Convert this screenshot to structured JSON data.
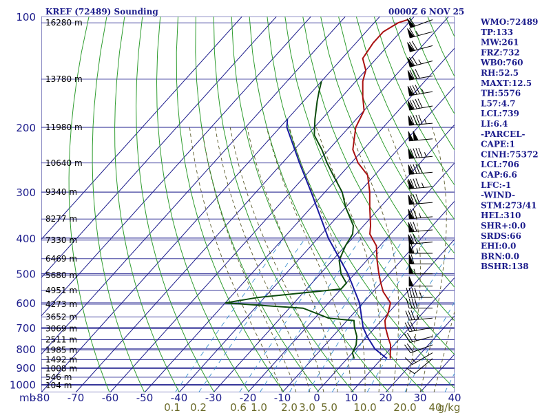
{
  "header": {
    "title": "KREF (72489) Sounding",
    "datetime": "0000Z  6 NOV 25"
  },
  "colors": {
    "grid": "#1c1c8c",
    "dry_adiabat": "#2e9c2e",
    "moist_adiabat": "#5a5a2a",
    "mixing_ratio": "#3a8fcf",
    "temperature": "#aa1111",
    "dewpoint": "#0c4c0c",
    "parcel": "#1a1aa0",
    "wind_barb": "#000000"
  },
  "indices": [
    "WMO:72489",
    "TP:133",
    "MW:261",
    "FRZ:732",
    "WB0:760",
    "RH:52.5",
    "MAXT:12.5",
    "TH:5576",
    "L57:4.7",
    "LCL:739",
    "LI:6.4",
    "-PARCEL-",
    "CAPE:1",
    "CINH:75372",
    "LCL:706",
    "CAP:6.6",
    "LFC:-1",
    "-WIND-",
    "STM:273/41",
    "HEL:310",
    "SHR+:0.0",
    "SRDS:66",
    "EHI:0.0",
    "BRN:0.0",
    "BSHR:138"
  ],
  "mr_labels": [
    "0.1",
    "0.2",
    "0.6",
    "1.0",
    "2.0",
    "3.0",
    "5.0",
    "10.0",
    "20.0",
    "40",
    "g/kg"
  ],
  "chart_data": {
    "type": "line",
    "title": "KREF (72489) Sounding",
    "subtitle": "0000Z  6 NOV 25",
    "xlabel": "",
    "ylabel": "mb",
    "yscale": "log",
    "xlim": [
      -80,
      40
    ],
    "ylim": [
      1050,
      100
    ],
    "pressure_ticks": [
      100,
      200,
      300,
      400,
      500,
      600,
      700,
      800,
      900,
      1000
    ],
    "temperature_ticks": [
      -80,
      -70,
      -60,
      -50,
      -40,
      -30,
      -20,
      -10,
      0,
      10,
      20,
      30,
      40
    ],
    "height_labels": [
      {
        "p": 104,
        "label": "16280 m"
      },
      {
        "p": 148,
        "label": "13780 m"
      },
      {
        "p": 200,
        "label": "11980 m"
      },
      {
        "p": 250,
        "label": "10640 m"
      },
      {
        "p": 300,
        "label": "9340 m"
      },
      {
        "p": 355,
        "label": "8277 m"
      },
      {
        "p": 405,
        "label": "7330 m"
      },
      {
        "p": 455,
        "label": "6469 m"
      },
      {
        "p": 505,
        "label": "5680 m"
      },
      {
        "p": 555,
        "label": "4951 m"
      },
      {
        "p": 605,
        "label": "4273 m"
      },
      {
        "p": 655,
        "label": "3652 m"
      },
      {
        "p": 705,
        "label": "3069 m"
      },
      {
        "p": 755,
        "label": "2511 m"
      },
      {
        "p": 805,
        "label": "1985 m"
      },
      {
        "p": 855,
        "label": "1492 m"
      },
      {
        "p": 905,
        "label": "1008 m"
      },
      {
        "p": 955,
        "label": "546 m"
      },
      {
        "p": 1005,
        "label": "104 m"
      }
    ],
    "series": [
      {
        "role": "temperature",
        "points": [
          [
            850,
            12.5
          ],
          [
            820,
            11
          ],
          [
            780,
            9
          ],
          [
            740,
            6
          ],
          [
            700,
            3
          ],
          [
            670,
            1
          ],
          [
            640,
            0
          ],
          [
            600,
            -2
          ],
          [
            560,
            -7
          ],
          [
            530,
            -10
          ],
          [
            500,
            -13
          ],
          [
            460,
            -17
          ],
          [
            420,
            -21
          ],
          [
            390,
            -26
          ],
          [
            370,
            -28
          ],
          [
            330,
            -33
          ],
          [
            300,
            -37
          ],
          [
            270,
            -42
          ],
          [
            250,
            -48
          ],
          [
            230,
            -53
          ],
          [
            200,
            -58
          ],
          [
            180,
            -60
          ],
          [
            165,
            -64
          ],
          [
            150,
            -68
          ],
          [
            140,
            -70
          ],
          [
            130,
            -74
          ],
          [
            118,
            -75
          ],
          [
            110,
            -75
          ],
          [
            104,
            -73
          ],
          [
            102,
            -71
          ]
        ]
      },
      {
        "role": "dewpoint",
        "points": [
          [
            850,
            2
          ],
          [
            820,
            0
          ],
          [
            780,
            -1
          ],
          [
            740,
            -3
          ],
          [
            700,
            -6
          ],
          [
            670,
            -8
          ],
          [
            660,
            -16
          ],
          [
            620,
            -26
          ],
          [
            600,
            -50
          ],
          [
            580,
            -42
          ],
          [
            550,
            -20
          ],
          [
            530,
            -20
          ],
          [
            500,
            -24
          ],
          [
            460,
            -28
          ],
          [
            420,
            -30
          ],
          [
            390,
            -31
          ],
          [
            370,
            -33
          ],
          [
            330,
            -40
          ],
          [
            300,
            -45
          ],
          [
            270,
            -52
          ],
          [
            250,
            -57
          ],
          [
            230,
            -62
          ],
          [
            210,
            -68
          ],
          [
            190,
            -72
          ],
          [
            170,
            -76
          ],
          [
            160,
            -78
          ],
          [
            150,
            -80
          ]
        ]
      },
      {
        "role": "parcel",
        "points": [
          [
            850,
            11.5
          ],
          [
            800,
            5.5
          ],
          [
            740,
            0
          ],
          [
            700,
            -3.5
          ],
          [
            600,
            -11
          ],
          [
            500,
            -22
          ],
          [
            400,
            -37
          ],
          [
            300,
            -54
          ],
          [
            250,
            -65
          ],
          [
            200,
            -78
          ],
          [
            190,
            -80
          ]
        ]
      }
    ],
    "wind_barbs": [
      {
        "p": 850,
        "dir": 230,
        "spd": 10
      },
      {
        "p": 820,
        "dir": 240,
        "spd": 15
      },
      {
        "p": 780,
        "dir": 250,
        "spd": 20
      },
      {
        "p": 740,
        "dir": 255,
        "spd": 25
      },
      {
        "p": 700,
        "dir": 260,
        "spd": 30
      },
      {
        "p": 660,
        "dir": 265,
        "spd": 35
      },
      {
        "p": 620,
        "dir": 270,
        "spd": 40
      },
      {
        "p": 580,
        "dir": 270,
        "spd": 45
      },
      {
        "p": 540,
        "dir": 270,
        "spd": 50
      },
      {
        "p": 500,
        "dir": 270,
        "spd": 55
      },
      {
        "p": 470,
        "dir": 270,
        "spd": 60
      },
      {
        "p": 440,
        "dir": 270,
        "spd": 65
      },
      {
        "p": 410,
        "dir": 265,
        "spd": 70
      },
      {
        "p": 380,
        "dir": 265,
        "spd": 70
      },
      {
        "p": 350,
        "dir": 265,
        "spd": 75
      },
      {
        "p": 320,
        "dir": 265,
        "spd": 80
      },
      {
        "p": 290,
        "dir": 265,
        "spd": 85
      },
      {
        "p": 265,
        "dir": 265,
        "spd": 90
      },
      {
        "p": 240,
        "dir": 265,
        "spd": 95
      },
      {
        "p": 215,
        "dir": 265,
        "spd": 100
      },
      {
        "p": 195,
        "dir": 265,
        "spd": 95
      },
      {
        "p": 175,
        "dir": 260,
        "spd": 90
      },
      {
        "p": 160,
        "dir": 260,
        "spd": 85
      },
      {
        "p": 145,
        "dir": 260,
        "spd": 80
      },
      {
        "p": 132,
        "dir": 255,
        "spd": 75
      },
      {
        "p": 120,
        "dir": 255,
        "spd": 70
      },
      {
        "p": 110,
        "dir": 255,
        "spd": 65
      },
      {
        "p": 102,
        "dir": 250,
        "spd": 60
      }
    ]
  }
}
